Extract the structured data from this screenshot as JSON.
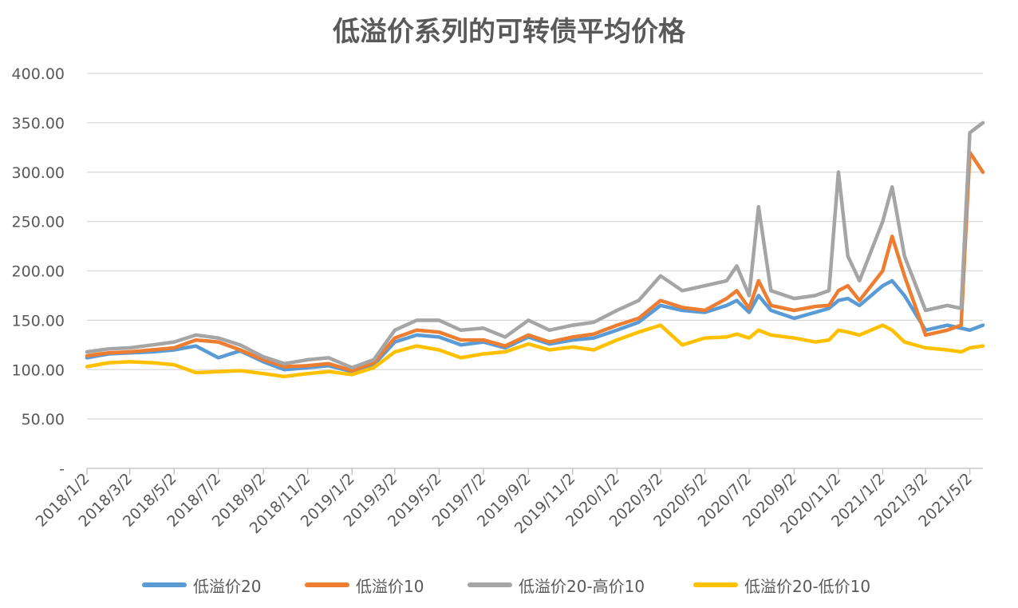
{
  "chart_data": {
    "type": "line",
    "title": "低溢价系列的可转债平均价格",
    "xlabel": "",
    "ylabel": "",
    "ylim": [
      0,
      400
    ],
    "y_ticks": [
      "-",
      "50.00",
      "100.00",
      "150.00",
      "200.00",
      "250.00",
      "300.00",
      "350.00",
      "400.00"
    ],
    "x_ticks": [
      "2018/1/2",
      "2018/3/2",
      "2018/5/2",
      "2018/7/2",
      "2018/9/2",
      "2018/11/2",
      "2019/1/2",
      "2019/3/2",
      "2019/5/2",
      "2019/7/2",
      "2019/9/2",
      "2019/11/2",
      "2020/1/2",
      "2020/3/2",
      "2020/5/2",
      "2020/7/2",
      "2020/9/2",
      "2020/11/2",
      "2021/1/2",
      "2021/3/2",
      "2021/5/2"
    ],
    "x": [
      "2018/1/2",
      "2018/2/1",
      "2018/3/2",
      "2018/4/2",
      "2018/5/2",
      "2018/6/1",
      "2018/7/2",
      "2018/8/1",
      "2018/9/2",
      "2018/10/1",
      "2018/11/2",
      "2018/12/1",
      "2019/1/2",
      "2019/2/1",
      "2019/3/2",
      "2019/4/1",
      "2019/5/2",
      "2019/6/1",
      "2019/7/2",
      "2019/8/1",
      "2019/9/2",
      "2019/10/1",
      "2019/11/2",
      "2019/12/1",
      "2020/1/2",
      "2020/2/1",
      "2020/3/2",
      "2020/4/1",
      "2020/5/2",
      "2020/6/1",
      "2020/6/15",
      "2020/7/2",
      "2020/7/15",
      "2020/8/1",
      "2020/9/2",
      "2020/10/1",
      "2020/10/20",
      "2020/11/2",
      "2020/11/15",
      "2020/12/1",
      "2021/1/2",
      "2021/1/15",
      "2021/2/1",
      "2021/3/2",
      "2021/4/1",
      "2021/4/20",
      "2021/5/2",
      "2021/5/20"
    ],
    "series": [
      {
        "name": "低溢价20",
        "color": "#5B9BD5",
        "values": [
          112,
          116,
          117,
          118,
          120,
          124,
          112,
          119,
          108,
          100,
          102,
          104,
          98,
          105,
          128,
          135,
          133,
          125,
          128,
          122,
          133,
          126,
          130,
          132,
          140,
          148,
          165,
          160,
          158,
          165,
          170,
          158,
          175,
          160,
          152,
          158,
          162,
          170,
          172,
          165,
          185,
          190,
          175,
          140,
          145,
          142,
          140,
          145
        ]
      },
      {
        "name": "低溢价10",
        "color": "#ED7D31",
        "values": [
          114,
          117,
          118,
          120,
          122,
          130,
          128,
          120,
          110,
          103,
          104,
          106,
          99,
          107,
          132,
          140,
          138,
          130,
          130,
          124,
          135,
          128,
          133,
          136,
          145,
          152,
          170,
          163,
          160,
          172,
          180,
          162,
          190,
          165,
          160,
          164,
          165,
          180,
          185,
          170,
          200,
          235,
          195,
          135,
          140,
          145,
          320,
          300
        ]
      },
      {
        "name": "低溢价20-高价10",
        "color": "#A5A5A5",
        "values": [
          118,
          121,
          122,
          125,
          128,
          135,
          132,
          125,
          113,
          106,
          110,
          112,
          102,
          110,
          140,
          150,
          150,
          140,
          142,
          133,
          150,
          140,
          145,
          148,
          160,
          170,
          195,
          180,
          185,
          190,
          205,
          175,
          265,
          180,
          172,
          175,
          180,
          300,
          215,
          190,
          250,
          285,
          215,
          160,
          165,
          162,
          340,
          350
        ]
      },
      {
        "name": "低溢价20-低价10",
        "color": "#FFC000",
        "values": [
          103,
          107,
          108,
          107,
          105,
          97,
          98,
          99,
          96,
          93,
          96,
          98,
          95,
          102,
          118,
          124,
          120,
          112,
          116,
          118,
          126,
          120,
          123,
          120,
          130,
          138,
          145,
          125,
          132,
          133,
          136,
          132,
          140,
          135,
          132,
          128,
          130,
          140,
          138,
          135,
          145,
          140,
          128,
          122,
          120,
          118,
          122,
          124
        ]
      }
    ],
    "grid": true,
    "legend_position": "bottom"
  }
}
